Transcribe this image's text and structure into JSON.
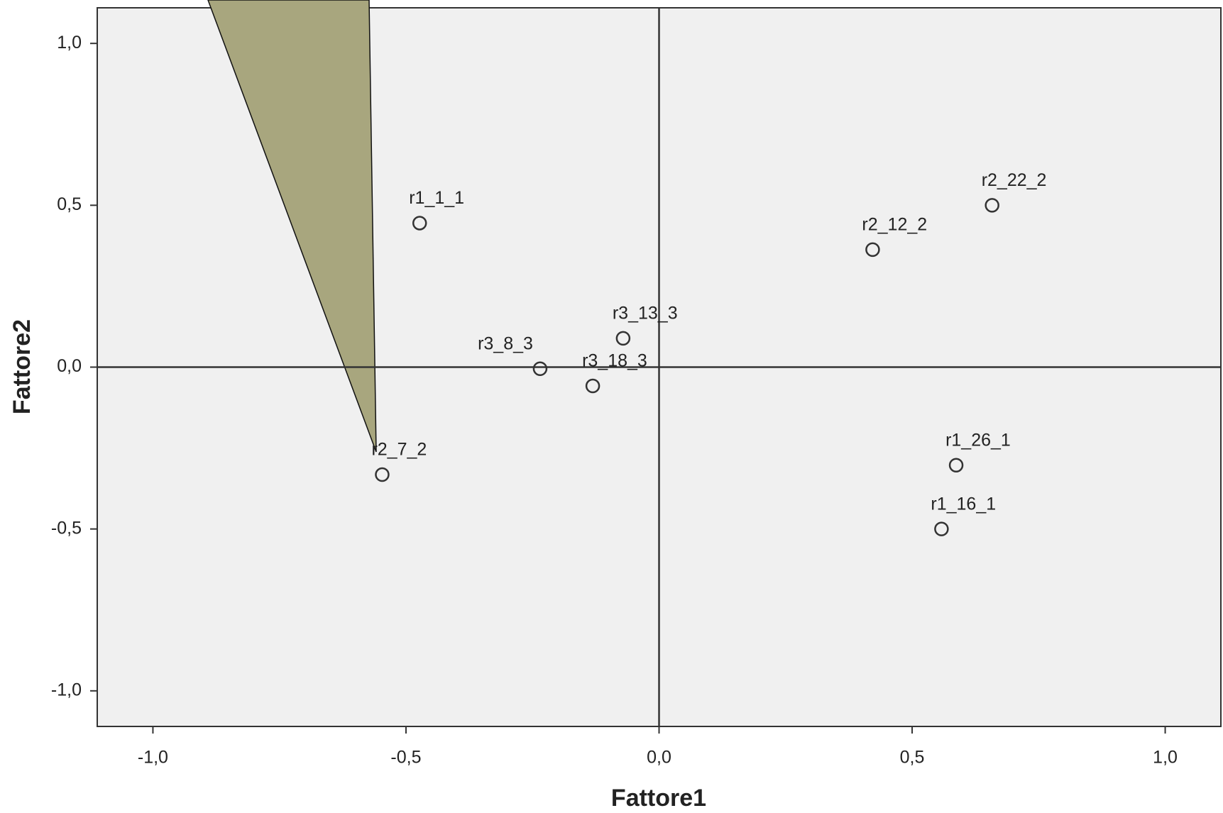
{
  "chart_data": {
    "type": "scatter",
    "x_label": "Fattore1",
    "y_label": "Fattore2",
    "labels": [
      "r1_1_1",
      "r2_22_2",
      "r2_12_2",
      "r3_13_3",
      "r3_8_3",
      "r3_18_3",
      "r2_7_2",
      "r1_26_1",
      "r1_16_1"
    ],
    "x": [
      -0.473,
      0.658,
      0.422,
      -0.071,
      -0.235,
      -0.131,
      -0.547,
      0.587,
      0.558
    ],
    "values": [
      0.445,
      0.5,
      0.363,
      0.089,
      -0.005,
      -0.058,
      -0.332,
      -0.303,
      -0.5
    ],
    "color": "#333333",
    "xlim": [
      -1.11,
      1.11
    ],
    "ylim": [
      -1.11,
      1.11
    ],
    "xticks": [
      {
        "value": -1.0,
        "label": "-1,0"
      },
      {
        "value": -0.5,
        "label": "-0,5"
      },
      {
        "value": 0.0,
        "label": "0,0"
      },
      {
        "value": 0.5,
        "label": "0,5"
      },
      {
        "value": 1.0,
        "label": "1,0"
      }
    ],
    "yticks": [
      {
        "value": -1.0,
        "label": "-1,0"
      },
      {
        "value": -0.5,
        "label": "-0,5"
      },
      {
        "value": 0.0,
        "label": "0,0"
      },
      {
        "value": 0.5,
        "label": "0,5"
      },
      {
        "value": 1.0,
        "label": "1,0"
      }
    ],
    "reference_lines": {
      "x": 0,
      "y": 0
    }
  }
}
